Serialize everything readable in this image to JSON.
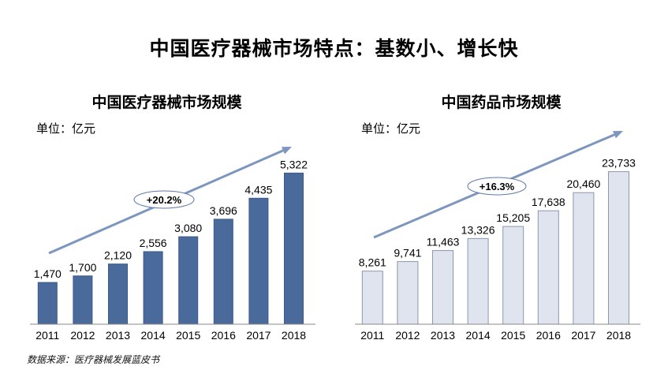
{
  "page": {
    "title": "中国医疗器械市场特点：基数小、增长快",
    "source": "数据来源：医疗器械发展蓝皮书"
  },
  "chart_data": [
    {
      "type": "bar",
      "title": "中国医疗器械市场规模",
      "unit": "单位：亿元",
      "categories": [
        "2011",
        "2012",
        "2013",
        "2014",
        "2015",
        "2016",
        "2017",
        "2018"
      ],
      "values": [
        1470,
        1700,
        2120,
        2556,
        3080,
        3696,
        4435,
        5322
      ],
      "value_labels": [
        "1,470",
        "1,700",
        "2,120",
        "2,556",
        "3,080",
        "3,696",
        "4,435",
        "5,322"
      ],
      "ylim": [
        0,
        6000
      ],
      "growth_label": "+20.2%",
      "bar_color": "#4a6a9c",
      "bar_border": "#3b5a8a",
      "arrow_color": "#7d96c0",
      "grid": false
    },
    {
      "type": "bar",
      "title": "中国药品市场规模",
      "unit": "单位：亿元",
      "categories": [
        "2011",
        "2012",
        "2013",
        "2014",
        "2015",
        "2016",
        "2017",
        "2018"
      ],
      "values": [
        8261,
        9741,
        11463,
        13326,
        15205,
        17638,
        20460,
        23733
      ],
      "value_labels": [
        "8,261",
        "9,741",
        "11,463",
        "13,326",
        "15,205",
        "17,638",
        "20,460",
        "23,733"
      ],
      "ylim": [
        0,
        26500
      ],
      "growth_label": "+16.3%",
      "bar_color": "#dfe4ef",
      "bar_border": "#8a97ad",
      "arrow_color": "#7d96c0",
      "grid": false
    }
  ]
}
